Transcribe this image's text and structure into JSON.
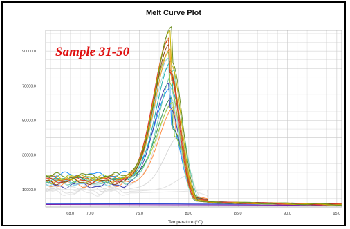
{
  "chart_data": {
    "type": "line",
    "title": "Melt Curve Plot",
    "xlabel": "Temperature (°C)",
    "ylabel": "",
    "annotation": "Sample 31-50",
    "xlim": [
      65.5,
      95.5
    ],
    "ylim": [
      0,
      102000
    ],
    "x_ticks": [
      68.0,
      70.0,
      75.0,
      80.0,
      85.0,
      90.0,
      95.0
    ],
    "x_tick_labels": [
      "68.0",
      "70.0",
      "75.0",
      "80.0",
      "85.0",
      "90.0",
      "95.0"
    ],
    "y_ticks": [
      10000,
      30000,
      50000,
      70000,
      90000
    ],
    "y_tick_labels": [
      "10000.0",
      "30000.0",
      "50000.0",
      "70000.0",
      "90000.0"
    ],
    "grid": true,
    "grid_color": "#c8c8c8",
    "baseline_series": [
      {
        "color": "#7a1fa8",
        "x": [
          65.5,
          80.0,
          95.5
        ],
        "y": [
          1400,
          1200,
          900
        ]
      },
      {
        "color": "#2040d0",
        "x": [
          65.5,
          80.0,
          95.5
        ],
        "y": [
          1900,
          1700,
          1400
        ]
      }
    ],
    "series": [
      {
        "color": "#6b8e23",
        "peak_x": 78.3,
        "peak_y": 101500,
        "base_y": 18000
      },
      {
        "color": "#c8b400",
        "peak_x": 78.2,
        "peak_y": 99500,
        "base_y": 17000
      },
      {
        "color": "#d2691e",
        "peak_x": 78.1,
        "peak_y": 95500,
        "base_y": 16500
      },
      {
        "color": "#e03030",
        "peak_x": 78.0,
        "peak_y": 94000,
        "base_y": 15500
      },
      {
        "color": "#8b4513",
        "peak_x": 78.1,
        "peak_y": 92000,
        "base_y": 14500
      },
      {
        "color": "#f4a020",
        "peak_x": 78.2,
        "peak_y": 89000,
        "base_y": 16000
      },
      {
        "color": "#a0c040",
        "peak_x": 78.0,
        "peak_y": 87000,
        "base_y": 15000
      },
      {
        "color": "#87ceeb",
        "peak_x": 78.0,
        "peak_y": 84000,
        "base_y": 14000
      },
      {
        "color": "#20b2aa",
        "peak_x": 78.3,
        "peak_y": 82000,
        "base_y": 15500
      },
      {
        "color": "#b0e0e6",
        "peak_x": 78.0,
        "peak_y": 79000,
        "base_y": 13500
      },
      {
        "color": "#66cdaa",
        "peak_x": 78.6,
        "peak_y": 77000,
        "base_y": 14500
      },
      {
        "color": "#3f3fb0",
        "peak_x": 78.1,
        "peak_y": 70000,
        "base_y": 12500
      },
      {
        "color": "#2e8b57",
        "peak_x": 78.4,
        "peak_y": 61000,
        "base_y": 16000
      },
      {
        "color": "#9acd32",
        "peak_x": 78.5,
        "peak_y": 58000,
        "base_y": 17000
      },
      {
        "color": "#ff8c40",
        "peak_x": 78.6,
        "peak_y": 56000,
        "base_y": 13000
      },
      {
        "color": "#1e90ff",
        "peak_x": 78.2,
        "peak_y": 66000,
        "base_y": 18500
      },
      {
        "color": "#dcdcdc",
        "peak_x": 78.5,
        "peak_y": 60000,
        "base_y": 12000
      },
      {
        "color": "#d8d8d8",
        "peak_x": 79.2,
        "peak_y": 40000,
        "base_y": 10500
      },
      {
        "color": "#e0e0e0",
        "peak_x": 80.5,
        "peak_y": 18000,
        "base_y": 9000
      },
      {
        "color": "#e4e4e4",
        "peak_x": 83.0,
        "peak_y": 9000,
        "base_y": 8000
      }
    ]
  }
}
